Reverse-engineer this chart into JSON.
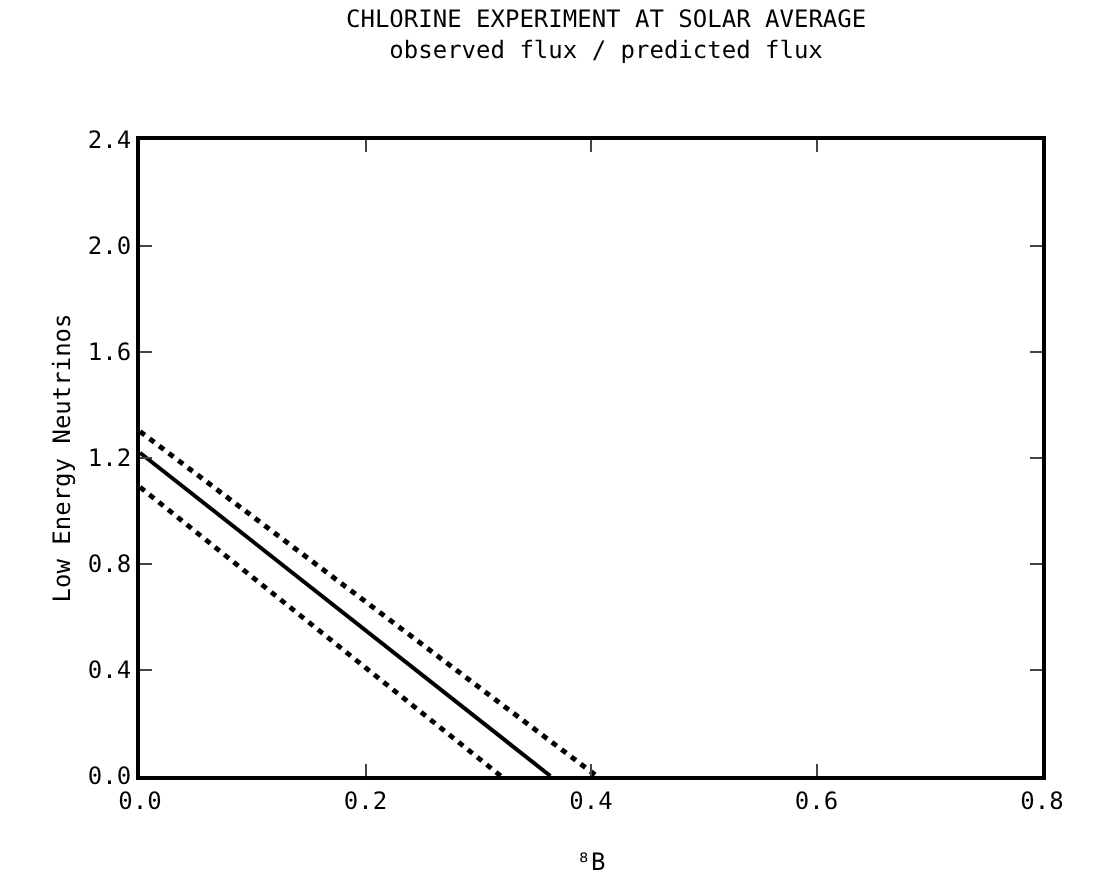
{
  "chart_data": {
    "type": "line",
    "title": "CHLORINE EXPERIMENT AT SOLAR AVERAGE",
    "subtitle": "observed flux / predicted flux",
    "xlabel": "⁸B",
    "ylabel": "Low Energy Neutrinos",
    "xlim": [
      0,
      0.8
    ],
    "xticks": [
      {
        "value": 0,
        "label": "0.0"
      },
      {
        "value": 0.2,
        "label": "0.2"
      },
      {
        "value": 0.4,
        "label": "0.4"
      },
      {
        "value": 0.6,
        "label": "0.6"
      },
      {
        "value": 0.8,
        "label": "0.8"
      }
    ],
    "ylim": [
      0,
      2.4
    ],
    "yticks": [
      {
        "value": 0,
        "label": "0.0"
      },
      {
        "value": 0.4,
        "label": "0.4"
      },
      {
        "value": 0.8,
        "label": "0.8"
      },
      {
        "value": 1.2,
        "label": "1.2"
      },
      {
        "value": 1.6,
        "label": "1.6"
      },
      {
        "value": 2.0,
        "label": "2.0"
      },
      {
        "value": 2.4,
        "label": "2.4"
      }
    ],
    "grid": false,
    "marker": "none",
    "series": [
      {
        "color": "#000000",
        "x": [
          0,
          0.364
        ],
        "values": [
          1.22,
          0
        ],
        "line_style": "solid"
      },
      {
        "color": "#000000",
        "x": [
          0,
          0.405
        ],
        "values": [
          1.3,
          0
        ],
        "line_style": "dotted"
      },
      {
        "color": "#000000",
        "x": [
          0,
          0.32
        ],
        "values": [
          1.09,
          0
        ],
        "line_style": "dotted"
      }
    ]
  }
}
